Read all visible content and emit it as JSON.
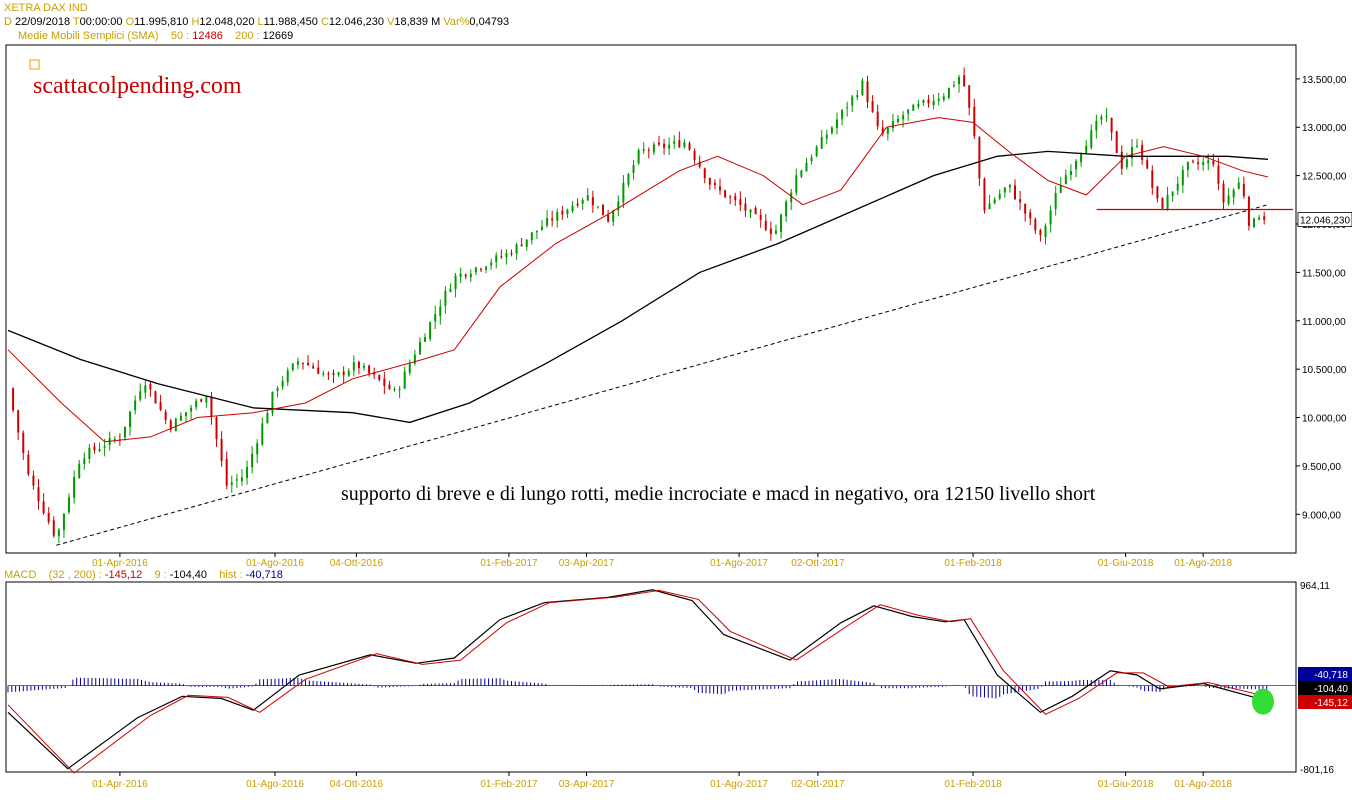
{
  "header": {
    "symbol": "XETRA DAX IND",
    "date_label": "D",
    "date": "22/09/2018",
    "time_label": "T",
    "time": "00:00:00",
    "open_label": "O",
    "open": "11.995,810",
    "high_label": "H",
    "high": "12.048,020",
    "low_label": "L",
    "low": "11.988,450",
    "close_label": "C",
    "close": "12.046,230",
    "volume_label": "V",
    "volume": "18,839 M",
    "var_label": "Var%",
    "var": "0,04793",
    "sma_label": "Medie Mobili Semplici (SMA)",
    "sma50_label": "50 :",
    "sma50": "12486",
    "sma200_label": "200 :",
    "sma200": "12669"
  },
  "brand": "scattacolpending.com",
  "annotation": "supporto di breve e di lungo rotti, medie incrociate e macd in negativo, ora 12150 livello short",
  "macd_header": {
    "label": "MACD",
    "params": "(32 , 200) :",
    "macd": "-145,12",
    "signal_label": "9 :",
    "signal": "-104,40",
    "hist_label": "hist :",
    "hist": "-40,718"
  },
  "colors": {
    "up": "#009900",
    "down": "#cc0000",
    "sma50": "#cc0000",
    "sma200": "#000000",
    "macd": "#000000",
    "signal": "#cc0000",
    "hist": "#000099",
    "label_gold": "#c8a000",
    "highlight": "#33dd33"
  },
  "chart_data": [
    {
      "type": "candlestick",
      "ylim": [
        8600,
        13850
      ],
      "y_ticks": [
        "13.500,00",
        "13.000,00",
        "12.500,00",
        "12.000,00",
        "11.500,00",
        "11.000,00",
        "10.500,00",
        "10.000,00",
        "9.500,00",
        "9.000,00"
      ],
      "y_tick_values": [
        13500,
        13000,
        12500,
        12000,
        11500,
        11000,
        10500,
        10000,
        9500,
        9000
      ],
      "x_tick_labels": [
        "01-Apr-2016",
        "01-Ago-2016",
        "04-Ott-2016",
        "01-Feb-2017",
        "03-Apr-2017",
        "01-Ago-2017",
        "02-Ott-2017",
        "01-Feb-2018",
        "01-Giu-2018",
        "01-Ago-2018"
      ],
      "x_tick_dates": [
        "2016-04-01",
        "2016-08-01",
        "2016-10-04",
        "2017-02-01",
        "2017-04-03",
        "2017-08-01",
        "2017-10-02",
        "2018-02-01",
        "2018-06-01",
        "2018-08-01"
      ],
      "x_range": [
        "2016-01-04",
        "2018-09-21"
      ],
      "last_value_label": "12.046,230",
      "last_value": 12046.23,
      "price_path": [
        [
          "2016-01-04",
          10300
        ],
        [
          "2016-01-20",
          9400
        ],
        [
          "2016-02-11",
          8750
        ],
        [
          "2016-03-01",
          9600
        ],
        [
          "2016-04-01",
          9800
        ],
        [
          "2016-04-20",
          10400
        ],
        [
          "2016-05-10",
          9900
        ],
        [
          "2016-06-08",
          10250
        ],
        [
          "2016-06-24",
          9300
        ],
        [
          "2016-07-08",
          9400
        ],
        [
          "2016-08-01",
          10300
        ],
        [
          "2016-08-20",
          10600
        ],
        [
          "2016-09-15",
          10400
        ],
        [
          "2016-10-04",
          10550
        ],
        [
          "2016-11-04",
          10250
        ],
        [
          "2016-11-20",
          10700
        ],
        [
          "2016-12-20",
          11450
        ],
        [
          "2017-01-15",
          11600
        ],
        [
          "2017-02-01",
          11700
        ],
        [
          "2017-03-01",
          12000
        ],
        [
          "2017-04-03",
          12300
        ],
        [
          "2017-04-20",
          12050
        ],
        [
          "2017-05-15",
          12750
        ],
        [
          "2017-06-20",
          12850
        ],
        [
          "2017-07-10",
          12400
        ],
        [
          "2017-08-01",
          12200
        ],
        [
          "2017-08-29",
          11900
        ],
        [
          "2017-09-15",
          12500
        ],
        [
          "2017-10-02",
          12800
        ],
        [
          "2017-11-06",
          13450
        ],
        [
          "2017-11-20",
          12900
        ],
        [
          "2017-12-10",
          13150
        ],
        [
          "2018-01-10",
          13350
        ],
        [
          "2018-01-23",
          13550
        ],
        [
          "2018-02-01",
          13000
        ],
        [
          "2018-02-09",
          12150
        ],
        [
          "2018-03-01",
          12400
        ],
        [
          "2018-03-26",
          11850
        ],
        [
          "2018-04-10",
          12400
        ],
        [
          "2018-05-15",
          13150
        ],
        [
          "2018-05-29",
          12600
        ],
        [
          "2018-06-10",
          12850
        ],
        [
          "2018-06-28",
          12150
        ],
        [
          "2018-07-20",
          12600
        ],
        [
          "2018-08-10",
          12650
        ],
        [
          "2018-08-15",
          12200
        ],
        [
          "2018-08-31",
          12450
        ],
        [
          "2018-09-07",
          11950
        ],
        [
          "2018-09-14",
          12100
        ],
        [
          "2018-09-21",
          12046
        ]
      ],
      "sma50_path": [
        [
          "2016-01-04",
          10700
        ],
        [
          "2016-02-15",
          10150
        ],
        [
          "2016-03-20",
          9750
        ],
        [
          "2016-04-25",
          9800
        ],
        [
          "2016-06-01",
          10000
        ],
        [
          "2016-07-15",
          10050
        ],
        [
          "2016-08-25",
          10150
        ],
        [
          "2016-10-01",
          10400
        ],
        [
          "2016-11-25",
          10600
        ],
        [
          "2016-12-20",
          10700
        ],
        [
          "2017-01-25",
          11350
        ],
        [
          "2017-03-10",
          11800
        ],
        [
          "2017-04-20",
          12100
        ],
        [
          "2017-06-15",
          12550
        ],
        [
          "2017-07-15",
          12700
        ],
        [
          "2017-08-20",
          12500
        ],
        [
          "2017-09-20",
          12200
        ],
        [
          "2017-10-20",
          12350
        ],
        [
          "2017-11-25",
          13000
        ],
        [
          "2018-01-05",
          13100
        ],
        [
          "2018-02-01",
          13050
        ],
        [
          "2018-03-01",
          12750
        ],
        [
          "2018-04-01",
          12450
        ],
        [
          "2018-05-01",
          12300
        ],
        [
          "2018-06-01",
          12700
        ],
        [
          "2018-07-01",
          12800
        ],
        [
          "2018-08-01",
          12700
        ],
        [
          "2018-09-01",
          12550
        ],
        [
          "2018-09-21",
          12486
        ]
      ],
      "sma200_path": [
        [
          "2016-01-04",
          10900
        ],
        [
          "2016-03-01",
          10600
        ],
        [
          "2016-05-01",
          10350
        ],
        [
          "2016-07-15",
          10100
        ],
        [
          "2016-10-01",
          10050
        ],
        [
          "2016-11-15",
          9950
        ],
        [
          "2017-01-01",
          10150
        ],
        [
          "2017-03-01",
          10550
        ],
        [
          "2017-05-01",
          11000
        ],
        [
          "2017-07-01",
          11500
        ],
        [
          "2017-09-01",
          11800
        ],
        [
          "2017-11-01",
          12150
        ],
        [
          "2018-01-01",
          12500
        ],
        [
          "2018-02-20",
          12700
        ],
        [
          "2018-04-01",
          12750
        ],
        [
          "2018-06-01",
          12700
        ],
        [
          "2018-07-15",
          12700
        ],
        [
          "2018-08-20",
          12700
        ],
        [
          "2018-09-21",
          12669
        ]
      ],
      "trendline": [
        [
          "2016-02-11",
          8680
        ],
        [
          "2018-09-21",
          12200
        ]
      ],
      "support_level": 12150,
      "support_range": [
        "2018-05-25",
        "2018-09-21"
      ]
    },
    {
      "type": "line",
      "name": "MACD",
      "ylim": [
        -801.16,
        964.11
      ],
      "y_tick_labels": [
        "964,11",
        "-801,16"
      ],
      "value_labels": [
        "-40,718",
        "-104,40",
        "-145,12"
      ],
      "macd_path": [
        [
          "2016-01-04",
          -250
        ],
        [
          "2016-02-20",
          -780
        ],
        [
          "2016-04-15",
          -300
        ],
        [
          "2016-05-20",
          -100
        ],
        [
          "2016-06-20",
          -120
        ],
        [
          "2016-07-15",
          -230
        ],
        [
          "2016-08-20",
          100
        ],
        [
          "2016-10-15",
          290
        ],
        [
          "2016-11-20",
          210
        ],
        [
          "2016-12-20",
          260
        ],
        [
          "2017-01-25",
          620
        ],
        [
          "2017-03-01",
          780
        ],
        [
          "2017-04-20",
          830
        ],
        [
          "2017-05-25",
          900
        ],
        [
          "2017-06-25",
          800
        ],
        [
          "2017-07-20",
          480
        ],
        [
          "2017-09-10",
          240
        ],
        [
          "2017-10-20",
          590
        ],
        [
          "2017-11-15",
          750
        ],
        [
          "2017-12-15",
          650
        ],
        [
          "2018-01-10",
          600
        ],
        [
          "2018-01-25",
          620
        ],
        [
          "2018-02-20",
          100
        ],
        [
          "2018-03-26",
          -250
        ],
        [
          "2018-04-20",
          -100
        ],
        [
          "2018-05-20",
          140
        ],
        [
          "2018-06-10",
          100
        ],
        [
          "2018-06-28",
          -30
        ],
        [
          "2018-08-01",
          20
        ],
        [
          "2018-09-21",
          -145
        ]
      ],
      "signal_path": [
        [
          "2016-01-04",
          -180
        ],
        [
          "2016-02-25",
          -820
        ],
        [
          "2016-04-25",
          -280
        ],
        [
          "2016-05-25",
          -90
        ],
        [
          "2016-06-25",
          -110
        ],
        [
          "2016-07-20",
          -250
        ],
        [
          "2016-08-25",
          60
        ],
        [
          "2016-10-20",
          300
        ],
        [
          "2016-11-25",
          200
        ],
        [
          "2016-12-25",
          240
        ],
        [
          "2017-01-30",
          590
        ],
        [
          "2017-03-05",
          780
        ],
        [
          "2017-04-25",
          830
        ],
        [
          "2017-05-30",
          895
        ],
        [
          "2017-06-30",
          810
        ],
        [
          "2017-07-25",
          510
        ],
        [
          "2017-09-15",
          240
        ],
        [
          "2017-10-25",
          560
        ],
        [
          "2017-11-20",
          760
        ],
        [
          "2017-12-20",
          660
        ],
        [
          "2018-01-15",
          600
        ],
        [
          "2018-01-30",
          630
        ],
        [
          "2018-02-25",
          140
        ],
        [
          "2018-03-30",
          -270
        ],
        [
          "2018-04-25",
          -120
        ],
        [
          "2018-05-25",
          120
        ],
        [
          "2018-06-15",
          120
        ],
        [
          "2018-07-05",
          -10
        ],
        [
          "2018-08-05",
          30
        ],
        [
          "2018-09-21",
          -104
        ]
      ]
    }
  ]
}
